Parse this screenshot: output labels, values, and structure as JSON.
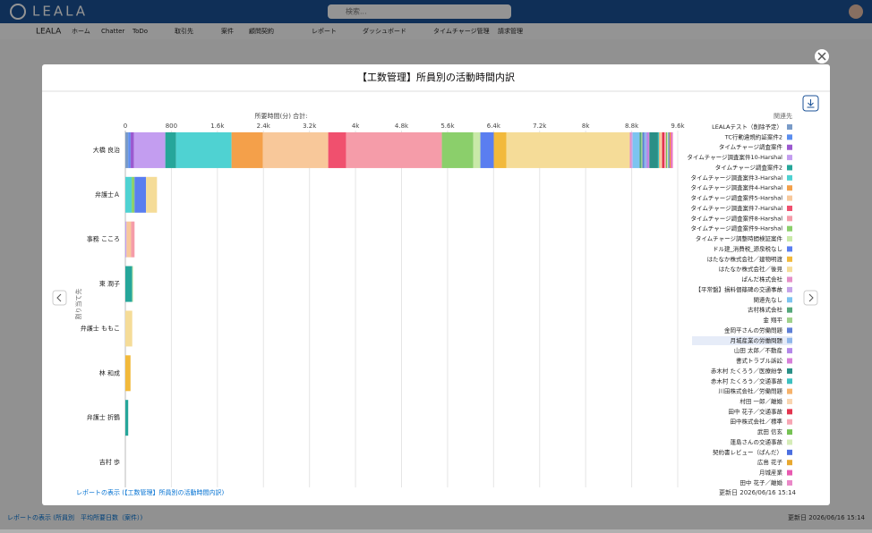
{
  "app": {
    "logo": "LEALA",
    "search": "検索...",
    "nav": [
      "LEALA",
      "ホーム",
      "Chatter",
      "ToDo",
      "取引先",
      "案件",
      "顧問契約",
      "レポート",
      "ダッシュボード",
      "タイムチャージ管理",
      "請求管理"
    ]
  },
  "background": {
    "link": "レポートの表示 (所員別　平均所要日数（案件）)",
    "updated": "更新日 2026/06/16 15:14"
  },
  "modal": {
    "title": "【工数管理】所員別の活動時間内訳",
    "link": "レポートの表示 (【工数管理】所員別の活動時間内訳)",
    "updated": "更新日 2026/06/16 15:14"
  },
  "chart_data": {
    "type": "stacked-bar-horizontal",
    "x_label": "所要時間(分) 合計:",
    "y_label": "割り当て先",
    "legend_title": "関連先",
    "categories": [
      "大橋 良治",
      "弁護士Ａ",
      "事務 こころ",
      "東 潤子",
      "弁護士 ももこ",
      "林 和成",
      "弁護士 折鶴",
      "吉村 歩"
    ],
    "xlim": [
      0,
      9600
    ],
    "xticks": [
      0,
      800,
      {
        "value": 1600,
        "label": "1.6k"
      },
      {
        "value": 2400,
        "label": "2.4k"
      },
      {
        "value": 3200,
        "label": "3.2k"
      },
      {
        "value": 4000,
        "label": "4k"
      },
      {
        "value": 4800,
        "label": "4.8k"
      },
      {
        "value": 5600,
        "label": "5.6k"
      },
      {
        "value": 6400,
        "label": "6.4k"
      },
      {
        "value": 7200,
        "label": "7.2k"
      },
      {
        "value": 8000,
        "label": "8k"
      },
      {
        "value": 8800,
        "label": "8.8k"
      },
      {
        "value": 9600,
        "label": "9.6k"
      }
    ],
    "grid": true,
    "series": [
      {
        "name": "LEALAテスト（削除予定）",
        "color": "#7a9bc8",
        "values": [
          50,
          0,
          0,
          0,
          0,
          0,
          0,
          0
        ]
      },
      {
        "name": "TC行動違規約証案件2",
        "color": "#5b8def",
        "values": [
          40,
          0,
          0,
          0,
          0,
          0,
          0,
          0
        ]
      },
      {
        "name": "タイムチャージ調査案件",
        "color": "#9b59d0",
        "values": [
          60,
          0,
          0,
          0,
          0,
          0,
          0,
          0
        ]
      },
      {
        "name": "タイムチャージ調査案件10-Harshal",
        "color": "#c39df0",
        "values": [
          545,
          0,
          20,
          0,
          0,
          0,
          0,
          0
        ]
      },
      {
        "name": "タイムチャージ調査案件2",
        "color": "#26a69a",
        "values": [
          187,
          0,
          0,
          120,
          0,
          0,
          50,
          0
        ]
      },
      {
        "name": "タイムチャージ調査案件3-Harshal",
        "color": "#4fd2d2",
        "values": [
          964,
          110,
          0,
          0,
          0,
          0,
          0,
          0
        ]
      },
      {
        "name": "タイムチャージ調査案件4-Harshal",
        "color": "#f4a04a",
        "values": [
          545,
          0,
          0,
          0,
          0,
          0,
          0,
          0
        ]
      },
      {
        "name": "タイムチャージ調査案件5-Harshal",
        "color": "#f8c89a",
        "values": [
          1135,
          0,
          80,
          0,
          0,
          0,
          0,
          0
        ]
      },
      {
        "name": "タイムチャージ調査案件7-Harshal",
        "color": "#f0506e",
        "values": [
          311,
          0,
          0,
          0,
          0,
          0,
          0,
          0
        ]
      },
      {
        "name": "タイムチャージ調査案件8-Harshal",
        "color": "#f59ca9",
        "values": [
          1664,
          0,
          60,
          0,
          0,
          0,
          0,
          0
        ]
      },
      {
        "name": "タイムチャージ調査案件9-Harshal",
        "color": "#8bcf6b",
        "values": [
          545,
          50,
          0,
          0,
          0,
          0,
          0,
          0
        ]
      },
      {
        "name": "タイムチャージ調整時間検証案件",
        "color": "#c9e9a8",
        "values": [
          124,
          0,
          0,
          15,
          0,
          0,
          0,
          0
        ]
      },
      {
        "name": "ドル建_消費税_源泉税なし",
        "color": "#5a7ef0",
        "values": [
          233,
          200,
          0,
          0,
          0,
          0,
          0,
          0
        ]
      },
      {
        "name": "はたなか株式会社／建物明渡",
        "color": "#f2b93b",
        "values": [
          218,
          0,
          0,
          0,
          0,
          90,
          0,
          0
        ]
      },
      {
        "name": "はたなか株式会社／後見",
        "color": "#f5dc98",
        "values": [
          2146,
          190,
          0,
          0,
          120,
          0,
          0,
          0
        ]
      },
      {
        "name": "ぱんだ株式会社",
        "color": "#e58fc8",
        "values": [
          30,
          0,
          0,
          0,
          0,
          0,
          0,
          0
        ]
      },
      {
        "name": "【平常盤】損料個篠碑の交通事故",
        "color": "#c5a3e8",
        "values": [
          20,
          0,
          0,
          0,
          0,
          0,
          0,
          0
        ]
      },
      {
        "name": "関連先なし",
        "color": "#7cc4f0",
        "values": [
          120,
          0,
          0,
          0,
          0,
          0,
          0,
          0
        ]
      },
      {
        "name": "古村株式会社",
        "color": "#54a77b",
        "values": [
          30,
          0,
          0,
          0,
          0,
          0,
          0,
          0
        ]
      },
      {
        "name": "金 翔平",
        "color": "#9fd18b",
        "values": [
          20,
          0,
          0,
          0,
          0,
          0,
          0,
          0
        ]
      },
      {
        "name": "金岡平さんの労働問題",
        "color": "#5e7fd6",
        "values": [
          30,
          0,
          0,
          0,
          0,
          0,
          0,
          0
        ]
      },
      {
        "name": "月城産業の労働問題",
        "color": "#8fb6ea",
        "values": [
          40,
          0,
          0,
          0,
          0,
          0,
          0,
          0
        ]
      },
      {
        "name": "山田 太郎／不動産",
        "color": "#b388e8",
        "values": [
          30,
          0,
          0,
          0,
          0,
          0,
          0,
          0
        ]
      },
      {
        "name": "書式トラブル訴訟",
        "color": "#d67fd8",
        "values": [
          20,
          0,
          0,
          0,
          0,
          0,
          0,
          0
        ]
      },
      {
        "name": "赤木村 たくろう／医療紛争",
        "color": "#2a8f86",
        "values": [
          150,
          0,
          0,
          0,
          0,
          0,
          0,
          0
        ]
      },
      {
        "name": "赤木村 たくろう／交通事故",
        "color": "#3ec0c0",
        "values": [
          20,
          0,
          0,
          0,
          0,
          0,
          0,
          0
        ]
      },
      {
        "name": "川田株式会社／労働問題",
        "color": "#f6b26b",
        "values": [
          20,
          0,
          0,
          0,
          0,
          0,
          0,
          0
        ]
      },
      {
        "name": "村田 一郎／離婚",
        "color": "#f9d5b0",
        "values": [
          30,
          0,
          0,
          0,
          0,
          0,
          0,
          0
        ]
      },
      {
        "name": "田中 花子／交通事故",
        "color": "#e3354f",
        "values": [
          40,
          0,
          0,
          0,
          0,
          0,
          0,
          0
        ]
      },
      {
        "name": "田中株式会社／標準",
        "color": "#f7a6b4",
        "values": [
          30,
          0,
          0,
          0,
          0,
          0,
          0,
          0
        ]
      },
      {
        "name": "武田 信玄",
        "color": "#76c254",
        "values": [
          20,
          0,
          0,
          0,
          0,
          0,
          0,
          0
        ]
      },
      {
        "name": "蓮島さんの交通事故",
        "color": "#d5ecb8",
        "values": [
          20,
          0,
          0,
          0,
          0,
          0,
          0,
          0
        ]
      },
      {
        "name": "契約書レビュー（ぱんだ）",
        "color": "#4b6fe0",
        "values": [
          20,
          0,
          0,
          0,
          0,
          0,
          0,
          0
        ]
      },
      {
        "name": "広島 花子",
        "color": "#e8a830",
        "values": [
          20,
          0,
          0,
          0,
          0,
          0,
          0,
          0
        ]
      },
      {
        "name": "月城産業",
        "color": "#e85ab0",
        "values": [
          20,
          0,
          0,
          0,
          0,
          0,
          0,
          0
        ]
      },
      {
        "name": "田中 花子／離婚",
        "color": "#ea88c8",
        "values": [
          20,
          0,
          0,
          0,
          0,
          0,
          0,
          0
        ]
      }
    ]
  }
}
